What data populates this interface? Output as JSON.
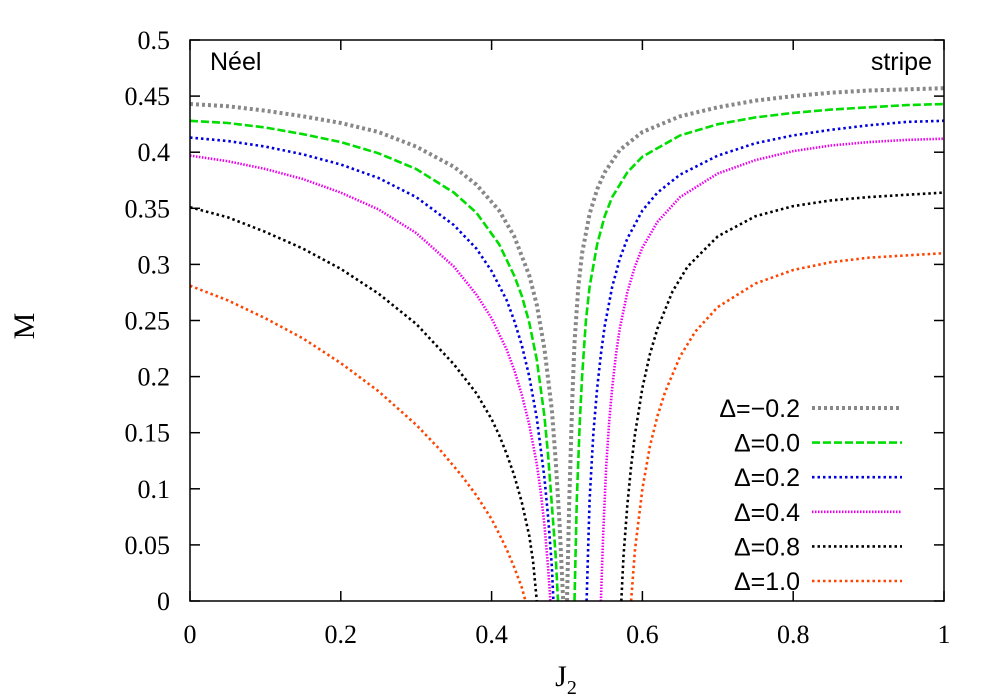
{
  "chart_data": {
    "type": "line",
    "xlabel": "J",
    "xlabel_subscript": "2",
    "ylabel": "M",
    "xlim": [
      0,
      1
    ],
    "ylim": [
      0,
      0.5
    ],
    "x_ticks": [
      "0",
      "0.2",
      "0.4",
      "0.6",
      "0.8",
      "1"
    ],
    "y_ticks": [
      "0",
      "0.05",
      "0.1",
      "0.15",
      "0.2",
      "0.25",
      "0.3",
      "0.35",
      "0.4",
      "0.45",
      "0.5"
    ],
    "grid": false,
    "legend_position": "bottom-right",
    "annotations": [
      {
        "text": "Néel",
        "position": "top-left"
      },
      {
        "text": "stripe",
        "position": "top-right"
      }
    ],
    "series": [
      {
        "name": "Δ=−0.2",
        "color": "#888888",
        "dash": "dotted-thick",
        "neel": {
          "x": [
            0,
            0.05,
            0.1,
            0.15,
            0.2,
            0.25,
            0.3,
            0.35,
            0.38,
            0.41,
            0.43,
            0.45,
            0.46,
            0.47,
            0.48,
            0.485,
            0.49,
            0.495
          ],
          "y": [
            0.443,
            0.441,
            0.437,
            0.432,
            0.426,
            0.418,
            0.405,
            0.387,
            0.371,
            0.348,
            0.325,
            0.29,
            0.264,
            0.225,
            0.17,
            0.125,
            0.07,
            0.0
          ]
        },
        "stripe": {
          "x": [
            0.5,
            0.503,
            0.507,
            0.51,
            0.515,
            0.52,
            0.53,
            0.54,
            0.55,
            0.57,
            0.6,
            0.65,
            0.7,
            0.75,
            0.8,
            0.85,
            0.9,
            0.95,
            1.0
          ],
          "y": [
            0.0,
            0.09,
            0.18,
            0.23,
            0.28,
            0.31,
            0.345,
            0.367,
            0.382,
            0.402,
            0.418,
            0.432,
            0.44,
            0.446,
            0.45,
            0.453,
            0.455,
            0.456,
            0.457
          ]
        }
      },
      {
        "name": "Δ=0.0",
        "color": "#00dd00",
        "dash": "dashed",
        "neel": {
          "x": [
            0,
            0.05,
            0.1,
            0.15,
            0.2,
            0.25,
            0.3,
            0.35,
            0.38,
            0.41,
            0.43,
            0.44,
            0.45,
            0.46,
            0.47,
            0.475,
            0.48,
            0.485,
            0.488
          ],
          "y": [
            0.428,
            0.426,
            0.422,
            0.416,
            0.409,
            0.399,
            0.385,
            0.364,
            0.346,
            0.318,
            0.29,
            0.272,
            0.248,
            0.215,
            0.165,
            0.13,
            0.085,
            0.04,
            0.0
          ]
        },
        "stripe": {
          "x": [
            0.51,
            0.513,
            0.517,
            0.52,
            0.525,
            0.53,
            0.54,
            0.55,
            0.56,
            0.58,
            0.6,
            0.65,
            0.7,
            0.75,
            0.8,
            0.85,
            0.9,
            0.95,
            1.0
          ],
          "y": [
            0.0,
            0.09,
            0.16,
            0.2,
            0.25,
            0.28,
            0.318,
            0.343,
            0.36,
            0.382,
            0.396,
            0.415,
            0.425,
            0.431,
            0.435,
            0.438,
            0.44,
            0.442,
            0.443
          ]
        }
      },
      {
        "name": "Δ=0.2",
        "color": "#0000dd",
        "dash": "dotted",
        "neel": {
          "x": [
            0,
            0.05,
            0.1,
            0.15,
            0.2,
            0.25,
            0.3,
            0.35,
            0.38,
            0.4,
            0.42,
            0.43,
            0.44,
            0.45,
            0.46,
            0.47,
            0.475,
            0.48,
            0.482
          ],
          "y": [
            0.413,
            0.41,
            0.405,
            0.398,
            0.389,
            0.377,
            0.36,
            0.335,
            0.314,
            0.294,
            0.268,
            0.25,
            0.228,
            0.2,
            0.163,
            0.11,
            0.075,
            0.03,
            0.0
          ]
        },
        "stripe": {
          "x": [
            0.526,
            0.53,
            0.535,
            0.54,
            0.545,
            0.55,
            0.56,
            0.57,
            0.58,
            0.6,
            0.62,
            0.65,
            0.7,
            0.75,
            0.8,
            0.85,
            0.9,
            0.95,
            1.0
          ],
          "y": [
            0.0,
            0.09,
            0.15,
            0.19,
            0.22,
            0.245,
            0.28,
            0.305,
            0.323,
            0.348,
            0.364,
            0.38,
            0.397,
            0.408,
            0.415,
            0.42,
            0.424,
            0.427,
            0.428
          ]
        }
      },
      {
        "name": "Δ=0.4",
        "color": "#ee00ee",
        "dash": "dense",
        "neel": {
          "x": [
            0,
            0.05,
            0.1,
            0.15,
            0.2,
            0.25,
            0.3,
            0.35,
            0.38,
            0.4,
            0.42,
            0.43,
            0.44,
            0.45,
            0.46,
            0.465,
            0.47,
            0.475,
            0.478
          ],
          "y": [
            0.397,
            0.392,
            0.385,
            0.376,
            0.364,
            0.349,
            0.328,
            0.298,
            0.273,
            0.252,
            0.224,
            0.206,
            0.184,
            0.157,
            0.122,
            0.098,
            0.068,
            0.03,
            0.0
          ]
        },
        "stripe": {
          "x": [
            0.545,
            0.548,
            0.552,
            0.556,
            0.56,
            0.565,
            0.57,
            0.58,
            0.59,
            0.6,
            0.62,
            0.65,
            0.7,
            0.75,
            0.8,
            0.85,
            0.9,
            0.95,
            1.0
          ],
          "y": [
            0.0,
            0.06,
            0.12,
            0.16,
            0.19,
            0.22,
            0.243,
            0.275,
            0.298,
            0.315,
            0.338,
            0.36,
            0.381,
            0.393,
            0.401,
            0.406,
            0.409,
            0.411,
            0.412
          ]
        }
      },
      {
        "name": "Δ=0.8",
        "color": "#000000",
        "dash": "dotted",
        "neel": {
          "x": [
            0,
            0.05,
            0.1,
            0.15,
            0.2,
            0.25,
            0.3,
            0.35,
            0.38,
            0.4,
            0.41,
            0.42,
            0.43,
            0.44,
            0.45,
            0.455,
            0.46
          ],
          "y": [
            0.351,
            0.342,
            0.329,
            0.314,
            0.296,
            0.274,
            0.247,
            0.211,
            0.185,
            0.162,
            0.148,
            0.131,
            0.112,
            0.088,
            0.058,
            0.035,
            0.0
          ]
        },
        "stripe": {
          "x": [
            0.572,
            0.575,
            0.58,
            0.585,
            0.59,
            0.6,
            0.61,
            0.62,
            0.64,
            0.66,
            0.7,
            0.75,
            0.8,
            0.85,
            0.9,
            0.95,
            1.0
          ],
          "y": [
            0.0,
            0.04,
            0.085,
            0.12,
            0.148,
            0.19,
            0.22,
            0.243,
            0.276,
            0.298,
            0.325,
            0.343,
            0.352,
            0.357,
            0.36,
            0.362,
            0.364
          ]
        }
      },
      {
        "name": "Δ=1.0",
        "color": "#ff4400",
        "dash": "dotted",
        "neel": {
          "x": [
            0,
            0.05,
            0.1,
            0.15,
            0.2,
            0.25,
            0.3,
            0.33,
            0.36,
            0.38,
            0.4,
            0.41,
            0.42,
            0.43,
            0.44,
            0.445
          ],
          "y": [
            0.281,
            0.268,
            0.252,
            0.234,
            0.212,
            0.187,
            0.157,
            0.136,
            0.112,
            0.094,
            0.073,
            0.06,
            0.046,
            0.03,
            0.012,
            0.0
          ]
        },
        "stripe": {
          "x": [
            0.585,
            0.59,
            0.6,
            0.61,
            0.62,
            0.63,
            0.65,
            0.67,
            0.7,
            0.75,
            0.8,
            0.85,
            0.9,
            0.95,
            1.0
          ],
          "y": [
            0.0,
            0.045,
            0.1,
            0.138,
            0.165,
            0.186,
            0.218,
            0.24,
            0.262,
            0.283,
            0.295,
            0.302,
            0.306,
            0.308,
            0.31
          ]
        }
      }
    ]
  }
}
